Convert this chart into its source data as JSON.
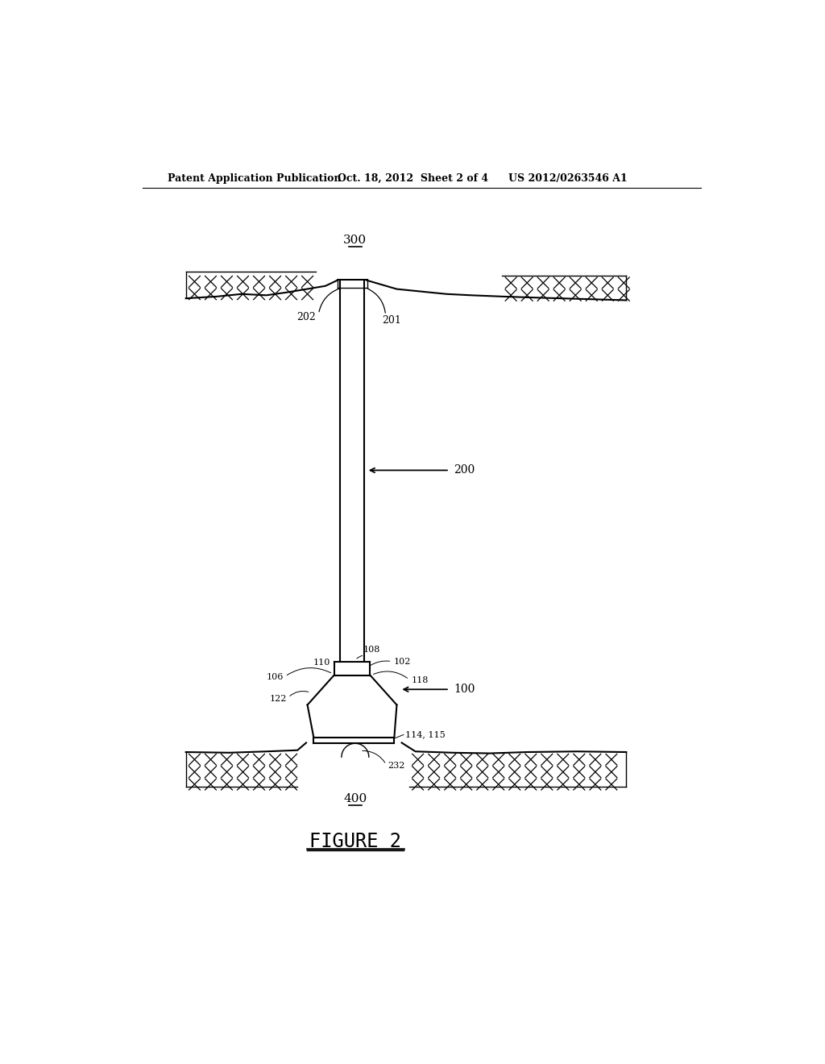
{
  "title_left": "Patent Application Publication",
  "title_mid": "Oct. 18, 2012  Sheet 2 of 4",
  "title_right": "US 2012/0263546 A1",
  "figure_label": "FIGURE 2",
  "bg_color": "#ffffff",
  "line_color": "#000000",
  "label_300": "300",
  "label_200": "200",
  "label_201": "201",
  "label_202": "202",
  "label_100": "100",
  "label_102": "102",
  "label_106": "106",
  "label_108": "108",
  "label_110": "110",
  "label_114": "114",
  "label_115": "115",
  "label_118": "118",
  "label_122": "122",
  "label_232": "232",
  "label_400": "400"
}
